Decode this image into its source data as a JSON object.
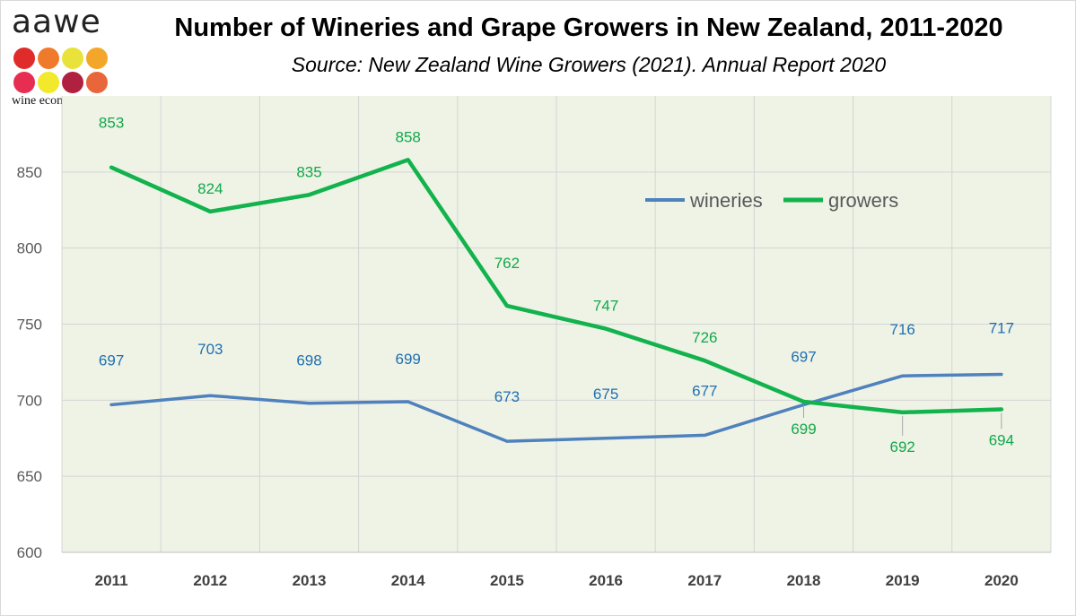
{
  "logo": {
    "wordmark": "aawe",
    "tagline": "wine economics",
    "dot_colors": [
      "#e02b2b",
      "#f07a2b",
      "#e8e23a",
      "#f4a62a",
      "#e82d52",
      "#f2e82c",
      "#b0203f",
      "#e8663a"
    ]
  },
  "chart_data": {
    "type": "line",
    "title": "Number of Wineries and Grape Growers in New Zealand, 2011-2020",
    "subtitle": "Source: New Zealand Wine Growers (2021). Annual Report 2020",
    "categories": [
      "2011",
      "2012",
      "2013",
      "2014",
      "2015",
      "2016",
      "2017",
      "2018",
      "2019",
      "2020"
    ],
    "series": [
      {
        "name": "wineries",
        "color": "#4f81bd",
        "label_color": "#1f6fb0",
        "values": [
          697,
          703,
          698,
          699,
          673,
          675,
          677,
          697,
          716,
          717
        ]
      },
      {
        "name": "growers",
        "color": "#12b24c",
        "label_color": "#12a84a",
        "values": [
          853,
          824,
          835,
          858,
          762,
          747,
          726,
          699,
          692,
          694
        ]
      }
    ],
    "ylim": [
      600,
      900
    ],
    "yticks": [
      600,
      650,
      700,
      750,
      800,
      850
    ],
    "grid": true,
    "plot_background": "#eef3e6",
    "legend_position": "upper-right"
  }
}
